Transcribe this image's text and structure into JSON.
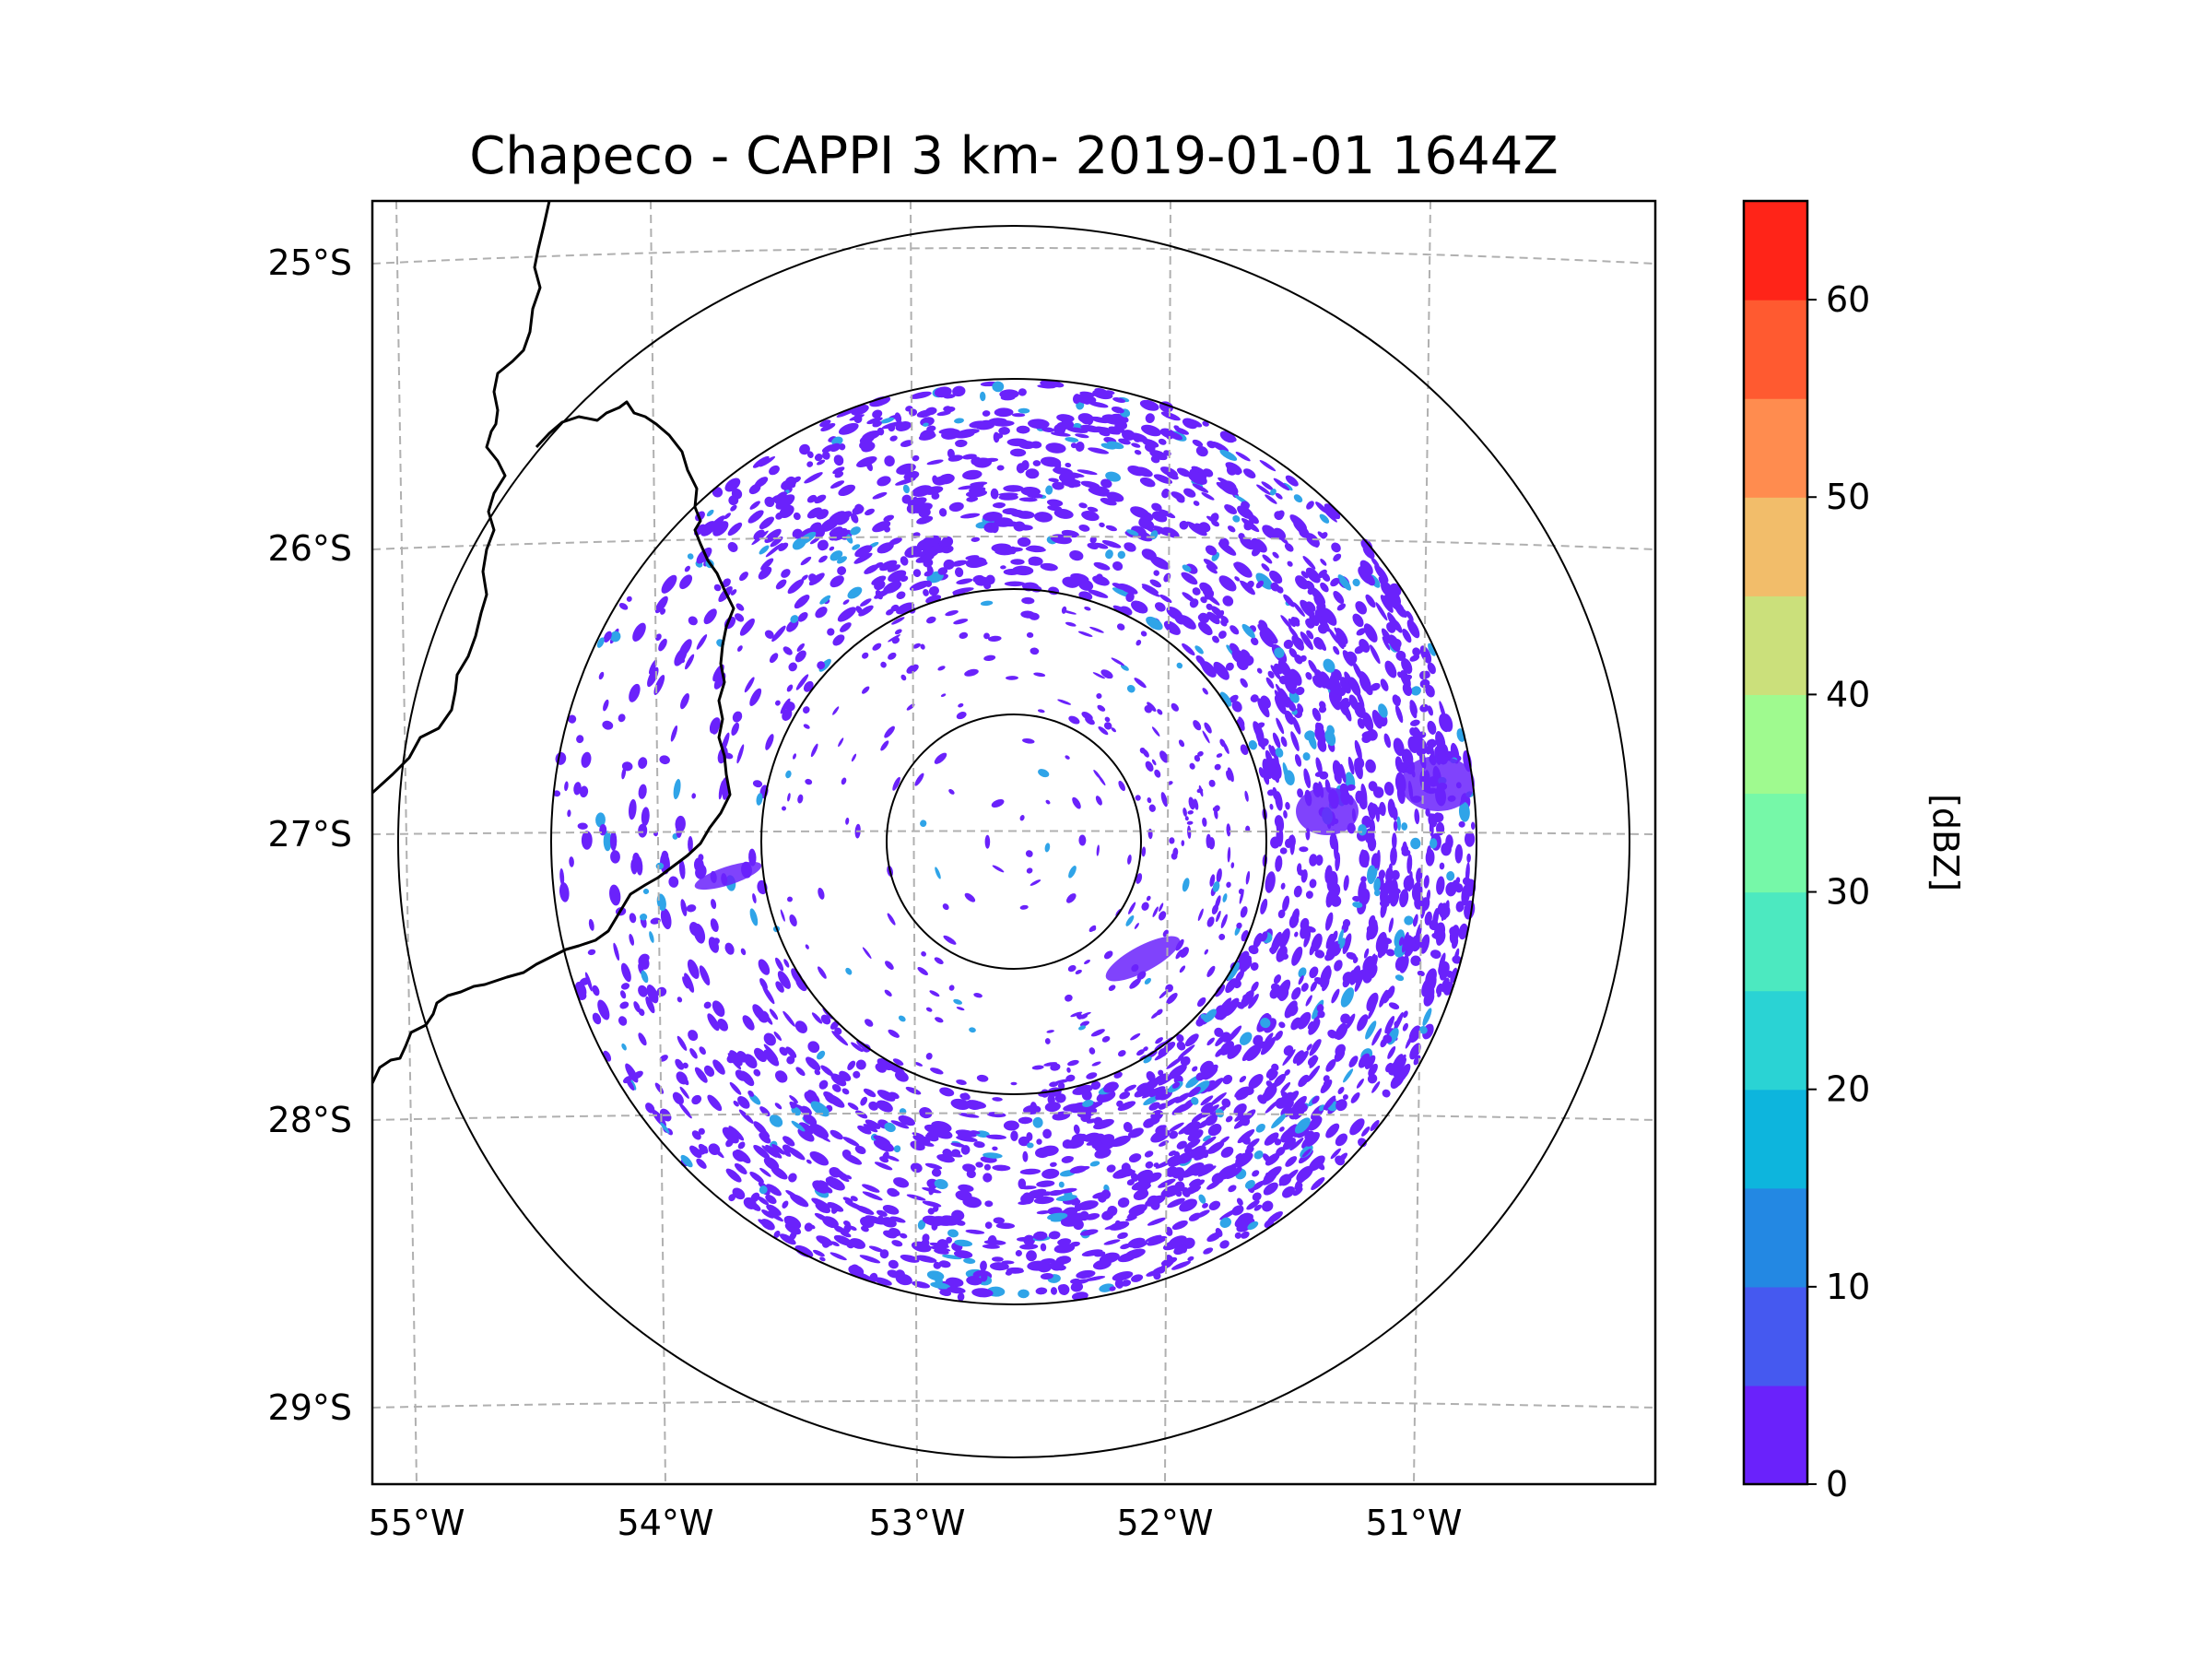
{
  "title": "Chapeco - CAPPI 3 km- 2019-01-01 1644Z",
  "map": {
    "longitude_ticks": [
      {
        "value": -55,
        "label": "55°W"
      },
      {
        "value": -54,
        "label": "54°W"
      },
      {
        "value": -53,
        "label": "53°W"
      },
      {
        "value": -52,
        "label": "52°W"
      },
      {
        "value": -51,
        "label": "51°W"
      }
    ],
    "latitude_ticks": [
      {
        "value": -25,
        "label": "25°S"
      },
      {
        "value": -26,
        "label": "26°S"
      },
      {
        "value": -27,
        "label": "27°S"
      },
      {
        "value": -28,
        "label": "28°S"
      },
      {
        "value": -29,
        "label": "29°S"
      }
    ],
    "radar_center": {
      "lon": -52.6,
      "lat": -27.03
    },
    "range_ring_count": 4,
    "gridline_style": "dashed"
  },
  "colorbar": {
    "label": "[dBZ]",
    "ticks": [
      "0",
      "10",
      "20",
      "30",
      "40",
      "50",
      "60"
    ],
    "range": [
      0,
      65
    ],
    "step": 5,
    "colors": [
      "#6a22fb",
      "#4559f0",
      "#2388e3",
      "#0db5dd",
      "#2ad3d4",
      "#4ce9c0",
      "#76f8a8",
      "#9ffa8f",
      "#cbe07b",
      "#f2bd6a",
      "#ff8c4f",
      "#ff5a30",
      "#ff2418"
    ]
  },
  "reflectivity_color": "#6a22fb",
  "reflectivity_secondary_color": "#2fa4e8"
}
